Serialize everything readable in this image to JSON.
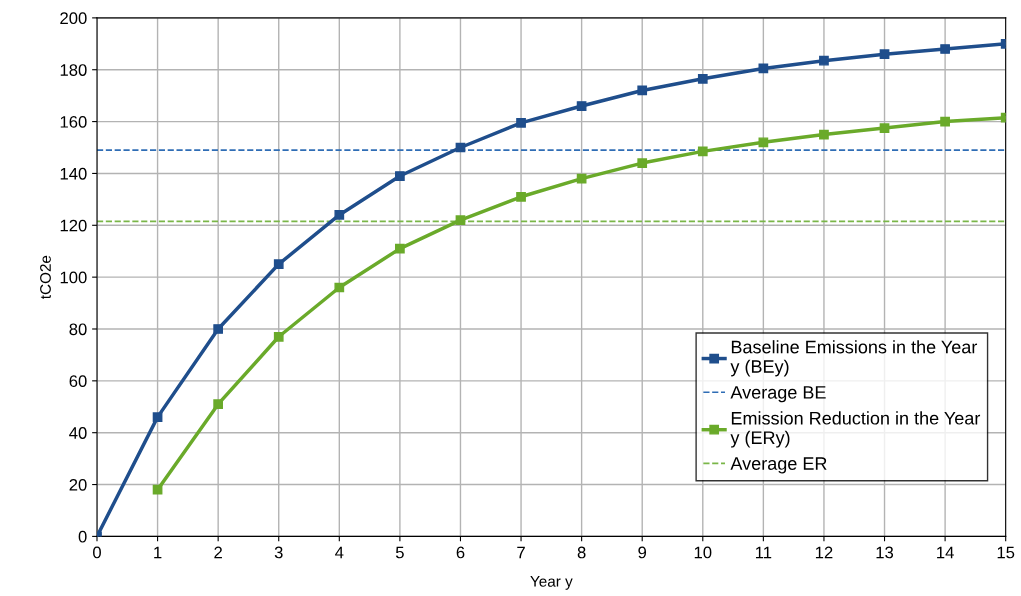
{
  "chart_data": {
    "type": "line",
    "xlabel": "Year y",
    "ylabel": "tCO2e",
    "x": [
      0,
      1,
      2,
      3,
      4,
      5,
      6,
      7,
      8,
      9,
      10,
      11,
      12,
      13,
      14,
      15
    ],
    "series": [
      {
        "name": "Baseline Emissions in the Year y (BEy)",
        "color": "#1f4e8c",
        "values": [
          0,
          46,
          80,
          105,
          124,
          139,
          150,
          159.5,
          166,
          172,
          176.5,
          180.5,
          183.5,
          186,
          188,
          190
        ]
      },
      {
        "name": "Emission Reduction in the Year y (ERy)",
        "color": "#6aaa2a",
        "values": [
          null,
          18,
          51,
          77,
          96,
          111,
          122,
          131,
          138,
          144,
          148.5,
          152,
          155,
          157.5,
          160,
          161.5
        ]
      }
    ],
    "ref_lines": [
      {
        "axis": "y",
        "value": 149,
        "label": "Average BE",
        "color": "#2f6db5",
        "line_style": "dashed"
      },
      {
        "axis": "y",
        "value": 121.5,
        "label": "Average ER",
        "color": "#7ab648",
        "line_style": "dashed"
      }
    ],
    "xlim": [
      0,
      15
    ],
    "xticks": [
      0,
      1,
      2,
      3,
      4,
      5,
      6,
      7,
      8,
      9,
      10,
      11,
      12,
      13,
      14,
      15
    ],
    "ylim": [
      0,
      200
    ],
    "yticks": [
      0,
      20,
      40,
      60,
      80,
      100,
      120,
      140,
      160,
      180,
      200
    ],
    "grid": true,
    "legend": "lower right",
    "marker": "square",
    "line_style": "solid"
  }
}
